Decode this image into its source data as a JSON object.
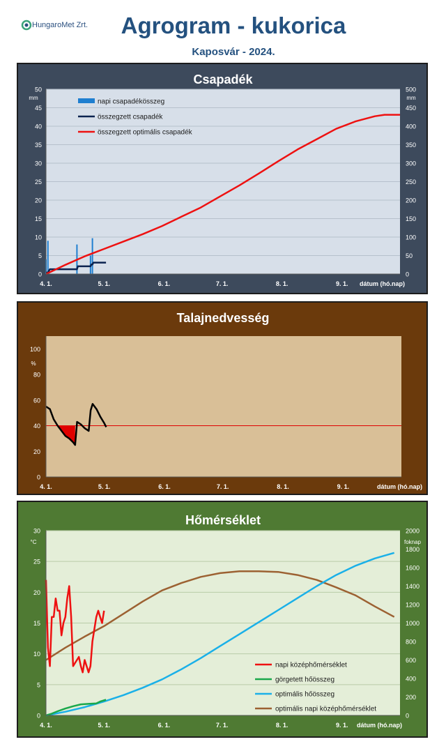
{
  "header": {
    "logo_text": "HungaroMet Zrt.",
    "title": "Agrogram - kukorica",
    "subtitle": "Kaposvár  - 2024."
  },
  "colors": {
    "title": "#24517f",
    "panel1_bg": "#3d4a5c",
    "panel2_bg": "#6b3a0c",
    "panel3_bg": "#4f7a33",
    "plot1_bg": "#d7dfe9",
    "plot2_bg": "#d9bf97",
    "plot3_bg": "#e4eed8",
    "daily_precip": "#1f7fd0",
    "cum_precip": "#0b2350",
    "opt_precip": "#ee1111",
    "soil_line": "#000000",
    "soil_threshold": "#e00000",
    "temp_daily": "#ee1111",
    "gdd": "#1aa84b",
    "opt_gdd": "#1ab0e8",
    "opt_temp": "#9c6132"
  },
  "chart_data": [
    {
      "type": "line",
      "title": "Csapadék",
      "xlabel": "dátum (hó.nap)",
      "ylabel": "mm",
      "y2label": "mm",
      "x_ticks": [
        "4. 1.",
        "5. 1.",
        "6. 1.",
        "7. 1.",
        "8. 1.",
        "9. 1."
      ],
      "x_tick_days": [
        0,
        30,
        61,
        91,
        122,
        153
      ],
      "xlim": [
        0,
        183
      ],
      "ylim": [
        0,
        50
      ],
      "y2lim": [
        0,
        500
      ],
      "y_ticks": [
        "0",
        "5",
        "10",
        "15",
        "20",
        "25",
        "30",
        "35",
        "40",
        "45",
        "50"
      ],
      "y2_ticks": [
        "0",
        "50",
        "100",
        "150",
        "200",
        "250",
        "300",
        "350",
        "400",
        "450",
        "500"
      ],
      "legend": [
        "napi csapadékösszeg",
        "összegzett csapadék",
        "összegzett optimális csapadék"
      ],
      "legend_position": "top-left",
      "grid": true,
      "series": [
        {
          "name": "napi csapadékösszeg",
          "type": "bar",
          "axis": "left",
          "x": [
            0,
            1,
            16,
            23,
            24
          ],
          "values": [
            4,
            9,
            8,
            5,
            9.7
          ]
        },
        {
          "name": "összegzett csapadék",
          "type": "line",
          "axis": "right",
          "x": [
            0,
            1,
            2,
            16,
            16.5,
            23,
            23.5,
            24,
            24.5,
            31
          ],
          "values": [
            4,
            4,
            13,
            13,
            21,
            21,
            26,
            26,
            31,
            31
          ]
        },
        {
          "name": "összegzett optimális csapadék",
          "type": "line",
          "axis": "right",
          "x": [
            0,
            10,
            20,
            30,
            40,
            50,
            60,
            70,
            80,
            90,
            100,
            110,
            120,
            130,
            140,
            150,
            160,
            170,
            175,
            183
          ],
          "values": [
            0,
            25,
            48,
            68,
            88,
            108,
            130,
            155,
            180,
            210,
            240,
            272,
            305,
            337,
            365,
            393,
            413,
            427,
            431,
            431
          ]
        }
      ]
    },
    {
      "type": "line",
      "title": "Talajnedvesség",
      "xlabel": "dátum (hó.nap)",
      "ylabel": "%",
      "x_ticks": [
        "4. 1.",
        "5. 1.",
        "6. 1.",
        "7. 1.",
        "8. 1.",
        "9. 1."
      ],
      "x_tick_days": [
        0,
        30,
        61,
        91,
        122,
        153
      ],
      "xlim": [
        0,
        183
      ],
      "ylim": [
        0,
        110
      ],
      "y_ticks": [
        "0",
        "20",
        "40",
        "60",
        "80",
        "100"
      ],
      "y_tick_values": [
        0,
        20,
        40,
        60,
        80,
        100
      ],
      "threshold": 40,
      "series": [
        {
          "name": "soil_moisture",
          "x": [
            0,
            2,
            4,
            6,
            8,
            10,
            12,
            14,
            15,
            16,
            18,
            20,
            22,
            23,
            24,
            26,
            28,
            30,
            31
          ],
          "values": [
            55,
            53,
            45,
            40,
            36,
            32,
            30,
            27,
            25,
            43,
            41,
            38,
            36,
            52,
            57,
            53,
            47,
            42,
            39
          ]
        }
      ]
    },
    {
      "type": "line",
      "title": "Hőmérséklet",
      "xlabel": "dátum (hó.nap)",
      "ylabel": "°C",
      "y2label": "foknap",
      "x_ticks": [
        "4. 1.",
        "5. 1.",
        "6. 1.",
        "7. 1.",
        "8. 1.",
        "9. 1."
      ],
      "x_tick_days": [
        0,
        30,
        61,
        91,
        122,
        153
      ],
      "xlim": [
        0,
        183
      ],
      "ylim": [
        0,
        30
      ],
      "y2lim": [
        0,
        2000
      ],
      "y_ticks": [
        "0",
        "5",
        "10",
        "15",
        "20",
        "25",
        "30"
      ],
      "y2_ticks": [
        "0",
        "200",
        "400",
        "600",
        "800",
        "1000",
        "1200",
        "1400",
        "1600",
        "1800",
        "2000"
      ],
      "legend": [
        "napi középhőmérséklet",
        "görgetett hőösszeg",
        "optimális hőösszeg",
        "optimális napi középhőmérséklet"
      ],
      "legend_position": "bottom-right",
      "grid": true,
      "series": [
        {
          "name": "napi középhőmérséklet",
          "axis": "left",
          "x": [
            0,
            1,
            2,
            3,
            4,
            5,
            6,
            7,
            8,
            9,
            10,
            11,
            12,
            13,
            14,
            15,
            16,
            17,
            18,
            19,
            20,
            21,
            22,
            23,
            24,
            25,
            26,
            27,
            28,
            29,
            30
          ],
          "values": [
            22,
            11,
            8,
            16,
            16,
            19,
            17,
            17,
            13,
            15,
            16,
            19,
            21,
            16,
            8,
            8.5,
            9,
            9.5,
            8,
            7,
            9,
            8,
            7,
            8,
            12,
            14,
            16,
            17,
            16,
            15,
            17
          ]
        },
        {
          "name": "görgetett hőösszeg",
          "axis": "right",
          "x": [
            0,
            3,
            6,
            10,
            14,
            18,
            22,
            26,
            28,
            31
          ],
          "values": [
            0,
            20,
            45,
            75,
            100,
            120,
            125,
            130,
            150,
            170
          ]
        },
        {
          "name": "optimális hőösszeg",
          "axis": "right",
          "x": [
            0,
            10,
            20,
            30,
            40,
            50,
            60,
            70,
            80,
            90,
            100,
            110,
            120,
            130,
            140,
            150,
            160,
            170,
            180
          ],
          "values": [
            0,
            40,
            90,
            150,
            220,
            300,
            390,
            500,
            620,
            750,
            880,
            1010,
            1140,
            1270,
            1400,
            1520,
            1620,
            1700,
            1760
          ]
        },
        {
          "name": "optimális napi középhőmérséklet",
          "axis": "left",
          "x": [
            0,
            10,
            20,
            30,
            40,
            50,
            60,
            70,
            80,
            90,
            100,
            110,
            120,
            130,
            140,
            150,
            160,
            170,
            180
          ],
          "values": [
            9,
            11,
            12.8,
            14.5,
            16.5,
            18.5,
            20.3,
            21.5,
            22.5,
            23.1,
            23.4,
            23.4,
            23.3,
            22.8,
            22,
            20.8,
            19.5,
            17.7,
            16
          ]
        }
      ]
    }
  ]
}
